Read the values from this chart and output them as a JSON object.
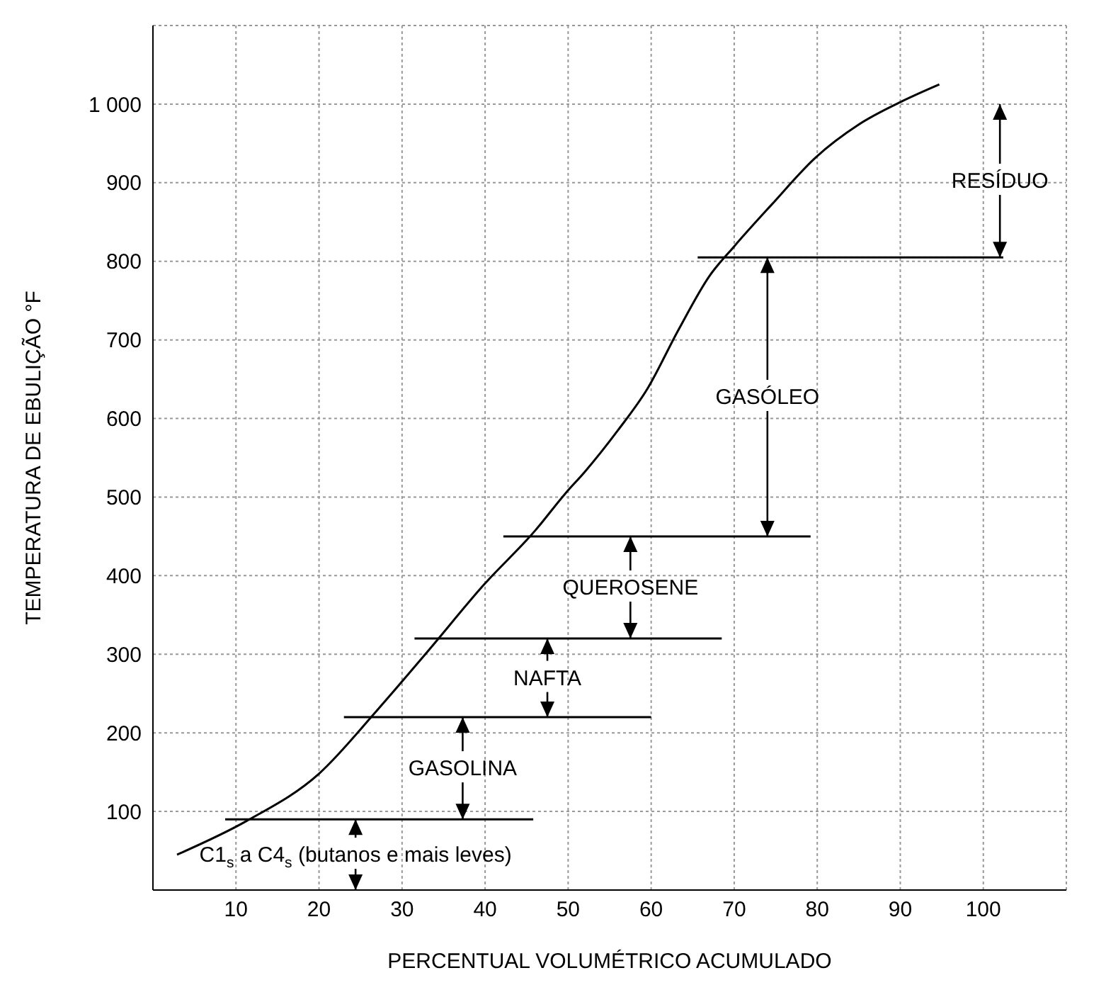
{
  "chart_data": {
    "type": "line",
    "xlabel": "PERCENTUAL VOLUMÉTRICO ACUMULADO",
    "ylabel": "TEMPERATURA DE EBULIÇÃO °F",
    "xlim": [
      0,
      110
    ],
    "xticks": [
      10,
      20,
      30,
      40,
      50,
      60,
      70,
      80,
      90,
      100
    ],
    "ylim": [
      0,
      1100
    ],
    "yticks": [
      100,
      200,
      300,
      400,
      500,
      600,
      700,
      800,
      900,
      {
        "value": 1000,
        "label": "1 000"
      }
    ],
    "grid": true,
    "marker": "none",
    "line_style": "solid",
    "series": [
      {
        "color": "#000000",
        "x": [
          2.9,
          11.3,
          20,
          27.1,
          33.2,
          39.9,
          46,
          49.7,
          52,
          56,
          59.5,
          63.3,
          67,
          70,
          74.5,
          79.8,
          85,
          90.3,
          94.7
        ],
        "values": [
          45,
          88,
          148,
          230,
          305,
          389,
          457,
          505,
          532,
          585,
          637,
          713,
          781,
          819,
          872,
          932,
          974,
          1004,
          1025
        ]
      },
      {
        "color": "#000000",
        "x": [
          8.7,
          45.8
        ],
        "values": [
          90,
          90
        ]
      },
      {
        "color": "#000000",
        "x": [
          23,
          60
        ],
        "values": [
          220,
          220
        ]
      },
      {
        "color": "#000000",
        "x": [
          31.5,
          68.5
        ],
        "values": [
          320,
          320
        ]
      },
      {
        "color": "#000000",
        "x": [
          42.2,
          79.2
        ],
        "values": [
          450,
          450
        ]
      },
      {
        "color": "#000000",
        "x": [
          65.6,
          102.4
        ],
        "values": [
          805,
          805
        ]
      }
    ],
    "annotations": [
      {
        "text": "C1$_{s}$ a C4$_{s}$ (butanos e mais leves)",
        "x": 24.4,
        "y": 90
      },
      {
        "text": "GASOLINA",
        "x": 37.3,
        "y": 220
      },
      {
        "text": "NAFTA",
        "x": 47.5,
        "y": 320
      },
      {
        "text": "QUEROSENE",
        "x": 57.5,
        "y": 450
      },
      {
        "text": "GASÓLEO",
        "x": 74,
        "y": 805
      },
      {
        "text": "RESÍDUO",
        "x": 102,
        "y": 805
      }
    ]
  }
}
